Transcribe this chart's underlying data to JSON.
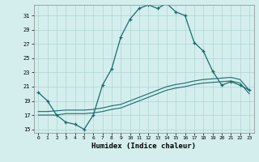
{
  "xlabel": "Humidex (Indice chaleur)",
  "background_color": "#d4eeee",
  "line_color": "#1a6b6b",
  "xlim": [
    -0.5,
    23.5
  ],
  "ylim": [
    14.5,
    32.5
  ],
  "yticks": [
    15,
    17,
    19,
    21,
    23,
    25,
    27,
    29,
    31
  ],
  "xticks": [
    0,
    1,
    2,
    3,
    4,
    5,
    6,
    7,
    8,
    9,
    10,
    11,
    12,
    13,
    14,
    15,
    16,
    17,
    18,
    19,
    20,
    21,
    22,
    23
  ],
  "series1_x": [
    0,
    1,
    2,
    3,
    4,
    5,
    6,
    7,
    8,
    9,
    10,
    11,
    12,
    13,
    14,
    15,
    16,
    17,
    18,
    19,
    20,
    21,
    22,
    23
  ],
  "series1_y": [
    20.2,
    19.0,
    17.0,
    16.0,
    15.7,
    15.0,
    17.0,
    21.2,
    23.5,
    28.0,
    30.5,
    32.0,
    32.5,
    32.0,
    32.7,
    31.5,
    31.0,
    27.2,
    26.0,
    23.2,
    21.2,
    21.7,
    21.2,
    20.5
  ],
  "series2_x": [
    0,
    1,
    2,
    3,
    4,
    5,
    6,
    7,
    8,
    9,
    10,
    11,
    12,
    13,
    14,
    15,
    16,
    17,
    18,
    19,
    20,
    21,
    22,
    23
  ],
  "series2_y": [
    17.0,
    17.0,
    17.0,
    17.2,
    17.2,
    17.2,
    17.3,
    17.5,
    17.8,
    18.0,
    18.5,
    19.0,
    19.5,
    20.0,
    20.5,
    20.8,
    21.0,
    21.3,
    21.5,
    21.6,
    21.7,
    21.8,
    21.5,
    20.0
  ],
  "series3_x": [
    0,
    1,
    2,
    3,
    4,
    5,
    6,
    7,
    8,
    9,
    10,
    11,
    12,
    13,
    14,
    15,
    16,
    17,
    18,
    19,
    20,
    21,
    22,
    23
  ],
  "series3_y": [
    17.5,
    17.5,
    17.6,
    17.7,
    17.7,
    17.7,
    17.8,
    18.0,
    18.3,
    18.5,
    19.0,
    19.5,
    20.0,
    20.5,
    21.0,
    21.3,
    21.5,
    21.8,
    22.0,
    22.1,
    22.2,
    22.3,
    22.0,
    20.5
  ]
}
